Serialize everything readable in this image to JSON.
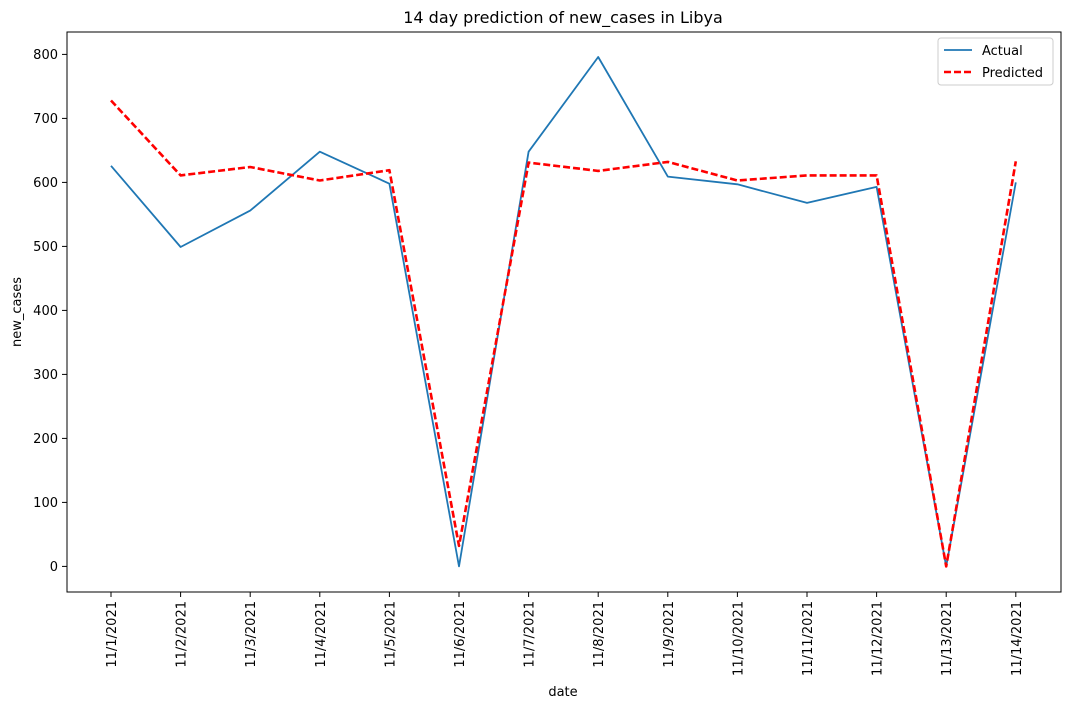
{
  "chart_data": {
    "type": "line",
    "title": "14 day prediction of new_cases in Libya",
    "xlabel": "date",
    "ylabel": "new_cases",
    "categories": [
      "11/1/2021",
      "11/2/2021",
      "11/3/2021",
      "11/4/2021",
      "11/5/2021",
      "11/6/2021",
      "11/7/2021",
      "11/8/2021",
      "11/9/2021",
      "11/10/2021",
      "11/11/2021",
      "11/12/2021",
      "11/13/2021",
      "11/14/2021"
    ],
    "ylim": [
      -40,
      835
    ],
    "yticks": [
      0,
      100,
      200,
      300,
      400,
      500,
      600,
      700,
      800
    ],
    "grid": false,
    "legend_position": "top-right",
    "series": [
      {
        "name": "Actual",
        "color": "#1f77b4",
        "style": "solid",
        "values": [
          626,
          499,
          556,
          648,
          598,
          0,
          648,
          796,
          609,
          597,
          568,
          593,
          0,
          600
        ]
      },
      {
        "name": "Predicted",
        "color": "#ff0000",
        "style": "dashed",
        "values": [
          728,
          611,
          624,
          603,
          619,
          32,
          631,
          618,
          632,
          603,
          611,
          611,
          0,
          633
        ]
      }
    ]
  }
}
